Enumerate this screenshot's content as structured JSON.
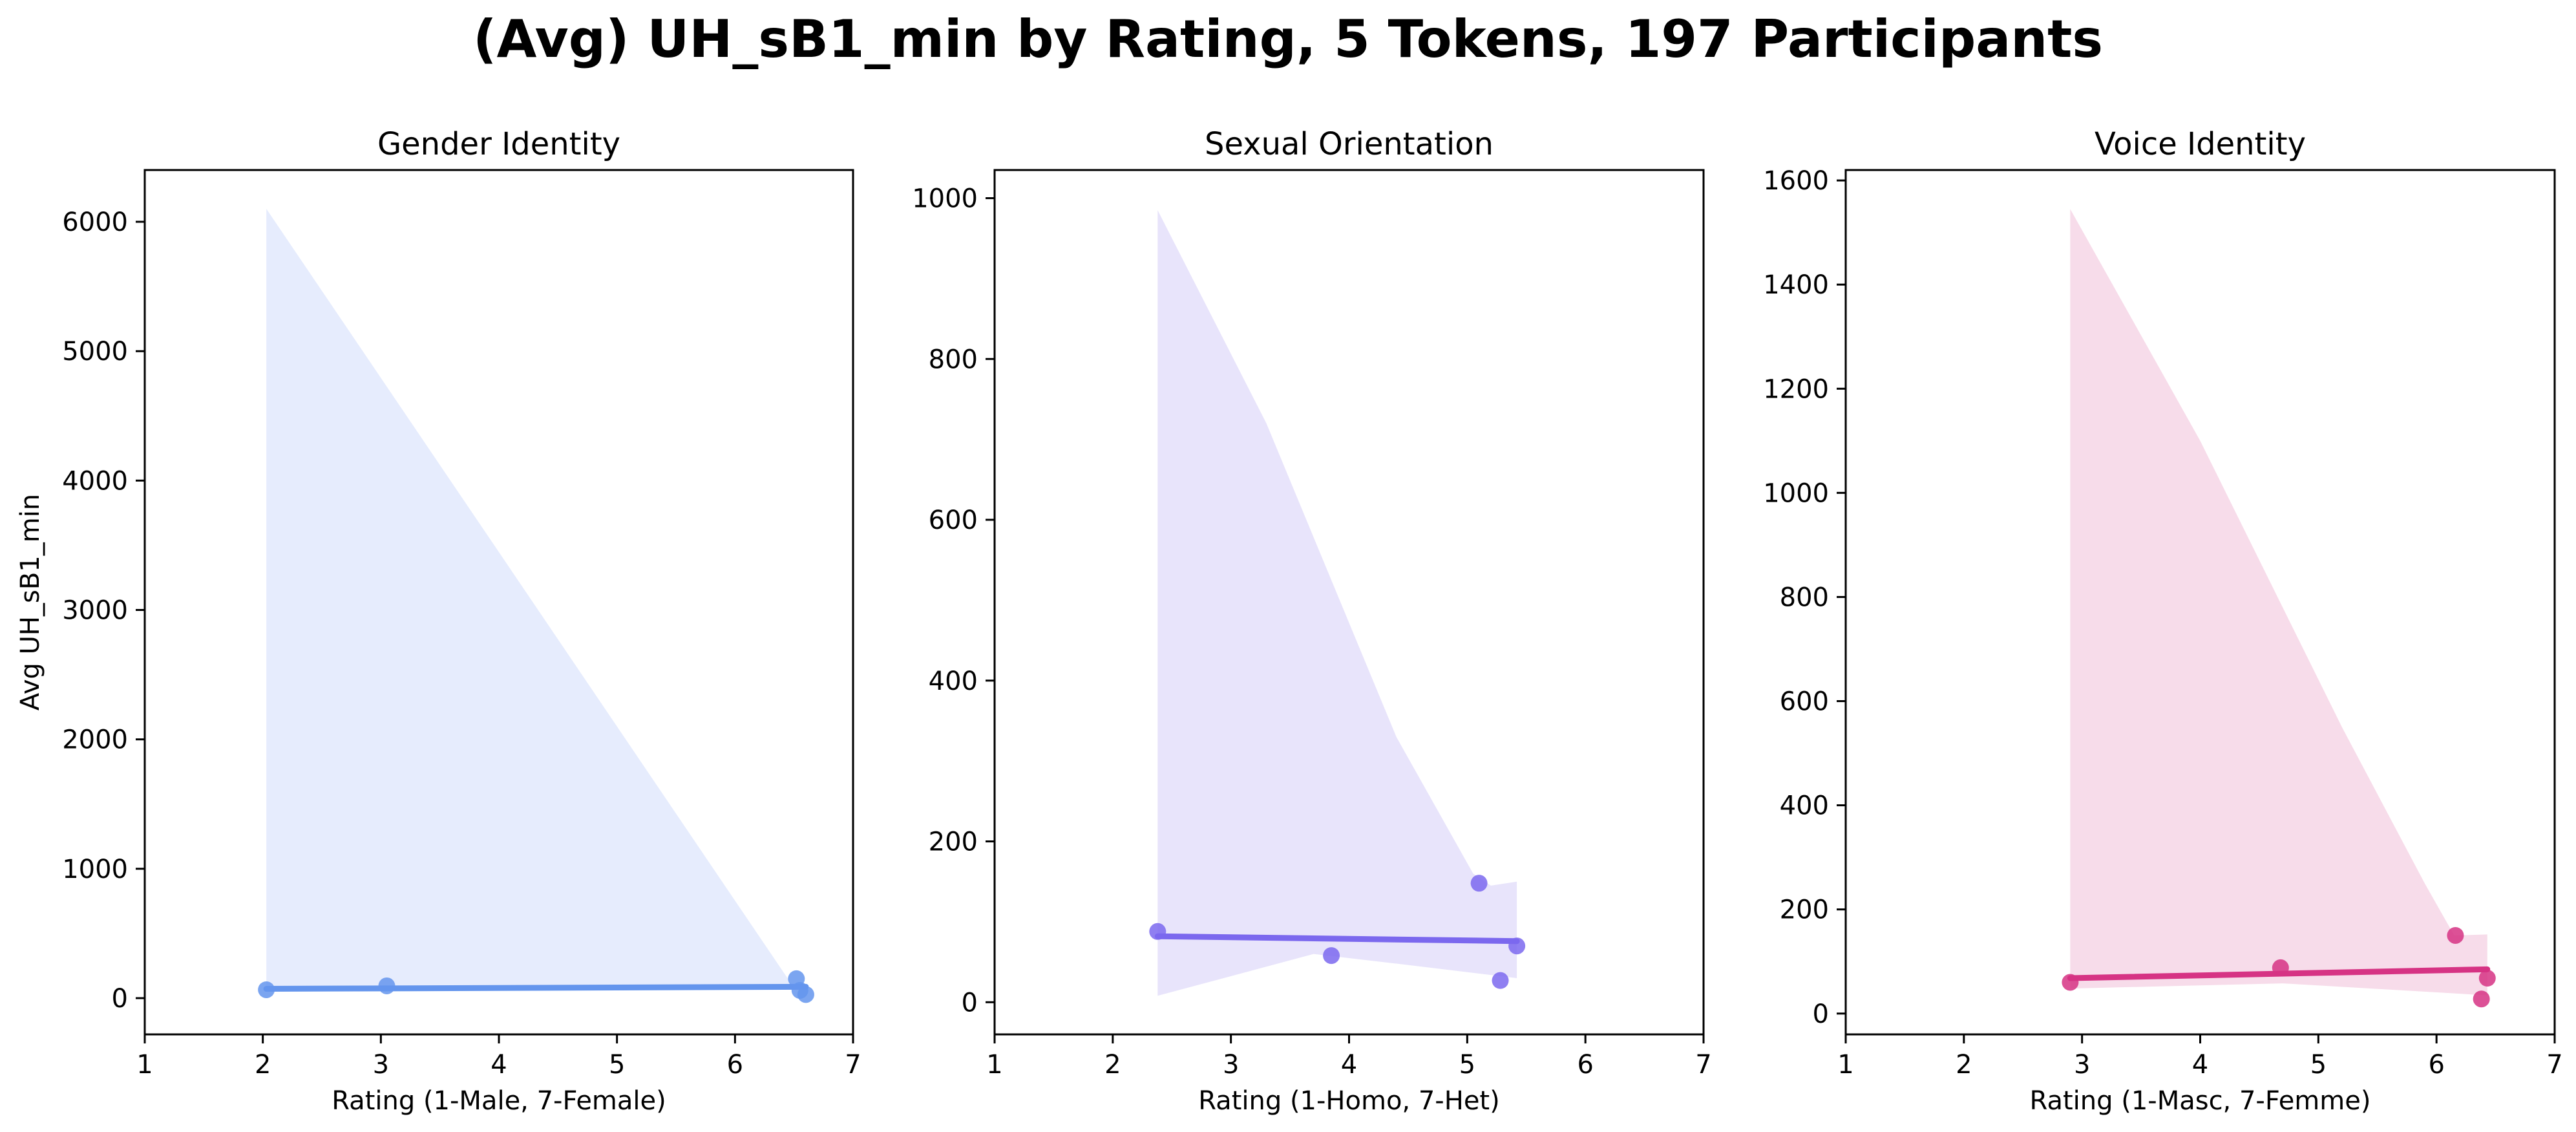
{
  "title": "(Avg) UH_sB1_min by Rating, 5 Tokens, 197 Participants",
  "chart_data": [
    {
      "type": "scatter",
      "title": "Gender Identity",
      "xlabel": "Rating (1-Male, 7-Female)",
      "ylabel": "Avg UH_sB1_min",
      "xlim": [
        1,
        7
      ],
      "ylim": [
        -280,
        6400
      ],
      "xticks": [
        1,
        2,
        3,
        4,
        5,
        6,
        7
      ],
      "yticks": [
        0,
        1000,
        2000,
        3000,
        4000,
        5000,
        6000
      ],
      "color": "#6495ED",
      "band_color": "#E6ECFD",
      "points": [
        {
          "x": 2.03,
          "y": 65
        },
        {
          "x": 3.05,
          "y": 95
        },
        {
          "x": 6.52,
          "y": 150
        },
        {
          "x": 6.55,
          "y": 60
        },
        {
          "x": 6.6,
          "y": 28
        }
      ],
      "fit": {
        "x": [
          2.03,
          6.6
        ],
        "y": [
          72,
          88
        ]
      },
      "band": {
        "upper": [
          [
            2.03,
            6100
          ],
          [
            6.5,
            80
          ],
          [
            6.6,
            60
          ]
        ],
        "lower": [
          [
            2.03,
            52
          ],
          [
            3.0,
            70
          ],
          [
            6.6,
            70
          ]
        ]
      }
    },
    {
      "type": "scatter",
      "title": "Sexual Orientation",
      "xlabel": "Rating (1-Homo, 7-Het)",
      "ylabel": "",
      "xlim": [
        1,
        7
      ],
      "ylim": [
        -40,
        1035
      ],
      "xticks": [
        1,
        2,
        3,
        4,
        5,
        6,
        7
      ],
      "yticks": [
        0,
        200,
        400,
        600,
        800,
        1000
      ],
      "color": "#7B68EE",
      "band_color": "#E8E4FB",
      "points": [
        {
          "x": 2.38,
          "y": 88
        },
        {
          "x": 3.85,
          "y": 58
        },
        {
          "x": 5.1,
          "y": 148
        },
        {
          "x": 5.28,
          "y": 27
        },
        {
          "x": 5.42,
          "y": 70
        }
      ],
      "fit": {
        "x": [
          2.38,
          5.42
        ],
        "y": [
          82,
          76
        ]
      },
      "band": {
        "upper": [
          [
            2.38,
            985
          ],
          [
            3.3,
            720
          ],
          [
            4.4,
            330
          ],
          [
            5.05,
            160
          ],
          [
            5.2,
            145
          ],
          [
            5.42,
            150
          ]
        ],
        "lower": [
          [
            2.38,
            8
          ],
          [
            3.7,
            60
          ],
          [
            4.4,
            48
          ],
          [
            5.42,
            30
          ]
        ]
      }
    },
    {
      "type": "scatter",
      "title": "Voice Identity",
      "xlabel": "Rating (1-Masc, 7-Femme)",
      "ylabel": "",
      "xlim": [
        1,
        7
      ],
      "ylim": [
        -40,
        1620
      ],
      "xticks": [
        1,
        2,
        3,
        4,
        5,
        6,
        7
      ],
      "yticks": [
        0,
        200,
        400,
        600,
        800,
        1000,
        1200,
        1400,
        1600
      ],
      "color": "#D63384",
      "band_color": "#F7DCEA",
      "points": [
        {
          "x": 2.9,
          "y": 60
        },
        {
          "x": 4.68,
          "y": 88
        },
        {
          "x": 6.16,
          "y": 150
        },
        {
          "x": 6.38,
          "y": 28
        },
        {
          "x": 6.43,
          "y": 68
        }
      ],
      "fit": {
        "x": [
          2.9,
          6.43
        ],
        "y": [
          68,
          85
        ]
      },
      "band": {
        "upper": [
          [
            2.9,
            1545
          ],
          [
            4.0,
            1100
          ],
          [
            5.2,
            550
          ],
          [
            5.9,
            250
          ],
          [
            6.15,
            150
          ],
          [
            6.43,
            152
          ]
        ],
        "lower": [
          [
            2.9,
            48
          ],
          [
            4.7,
            58
          ],
          [
            6.43,
            35
          ]
        ]
      }
    }
  ]
}
